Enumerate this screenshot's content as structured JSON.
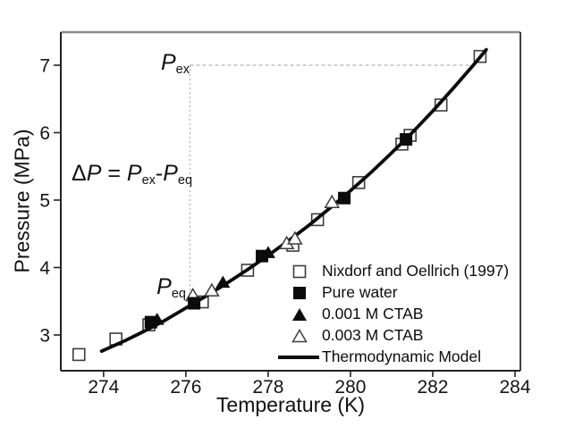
{
  "figure": {
    "background": "#ffffff",
    "curve_color": "#0b0b0b",
    "marker_stroke": "#3d3d3d",
    "guide_color": "#b3b3b3"
  },
  "chart_data": {
    "type": "scatter",
    "title": "",
    "xlabel": "Temperature (K)",
    "ylabel": "Pressure (MPa)",
    "xlim": [
      272.96,
      284.13
    ],
    "ylim": [
      2.47,
      7.49
    ],
    "xticks": [
      274,
      276,
      278,
      280,
      282,
      284
    ],
    "yticks": [
      3,
      4,
      5,
      6,
      7
    ],
    "grid": false,
    "legend_position": "lower-right-inside",
    "series": [
      {
        "name": "Nixdorf and Oellrich (1997)",
        "marker": "open-square",
        "points": [
          [
            273.4,
            2.71
          ],
          [
            274.3,
            2.94
          ],
          [
            275.1,
            3.15
          ],
          [
            276.4,
            3.49
          ],
          [
            277.5,
            3.96
          ],
          [
            278.6,
            4.33
          ],
          [
            279.2,
            4.71
          ],
          [
            280.2,
            5.26
          ],
          [
            281.25,
            5.83
          ],
          [
            281.45,
            5.96
          ],
          [
            282.2,
            6.41
          ],
          [
            283.15,
            7.13
          ]
        ]
      },
      {
        "name": "Pure water",
        "marker": "filled-square",
        "points": [
          [
            275.15,
            3.19
          ],
          [
            276.2,
            3.47
          ],
          [
            277.85,
            4.17
          ],
          [
            279.85,
            5.03
          ],
          [
            281.35,
            5.9
          ]
        ]
      },
      {
        "name": "0.001 M CTAB",
        "marker": "filled-triangle",
        "points": [
          [
            275.3,
            3.23
          ],
          [
            276.9,
            3.78
          ],
          [
            278.0,
            4.22
          ]
        ]
      },
      {
        "name": "0.003 M CTAB",
        "marker": "open-triangle",
        "points": [
          [
            276.17,
            3.59
          ],
          [
            276.63,
            3.66
          ],
          [
            278.45,
            4.36
          ],
          [
            278.65,
            4.43
          ],
          [
            279.55,
            4.97
          ]
        ]
      },
      {
        "name": "Thermodynamic Model",
        "marker": "line",
        "points": [
          [
            273.95,
            2.76
          ],
          [
            274.5,
            2.91
          ],
          [
            275.0,
            3.06
          ],
          [
            275.5,
            3.22
          ],
          [
            276.0,
            3.4
          ],
          [
            276.5,
            3.58
          ],
          [
            277.0,
            3.77
          ],
          [
            277.5,
            3.97
          ],
          [
            278.0,
            4.18
          ],
          [
            278.5,
            4.4
          ],
          [
            279.0,
            4.63
          ],
          [
            279.5,
            4.88
          ],
          [
            280.0,
            5.14
          ],
          [
            280.5,
            5.41
          ],
          [
            281.0,
            5.7
          ],
          [
            281.5,
            6.0
          ],
          [
            282.0,
            6.32
          ],
          [
            282.5,
            6.66
          ],
          [
            283.0,
            7.01
          ],
          [
            283.3,
            7.23
          ]
        ]
      }
    ],
    "guides": {
      "p_ex_level": 7.0,
      "t_vertical": 276.1,
      "h_t_end": 283.05,
      "v_p_end": 3.52
    }
  },
  "annotations": {
    "p_ex": {
      "symbol": "P",
      "sub": "ex"
    },
    "p_eq": {
      "symbol": "P",
      "sub": "eq"
    },
    "delta": {
      "lhs_delta": "Δ",
      "lhs_p": "P",
      "equals": " = ",
      "t1": "P",
      "t1_sub": "ex",
      "minus": "-",
      "t2": "P",
      "t2_sub": "eq"
    }
  }
}
